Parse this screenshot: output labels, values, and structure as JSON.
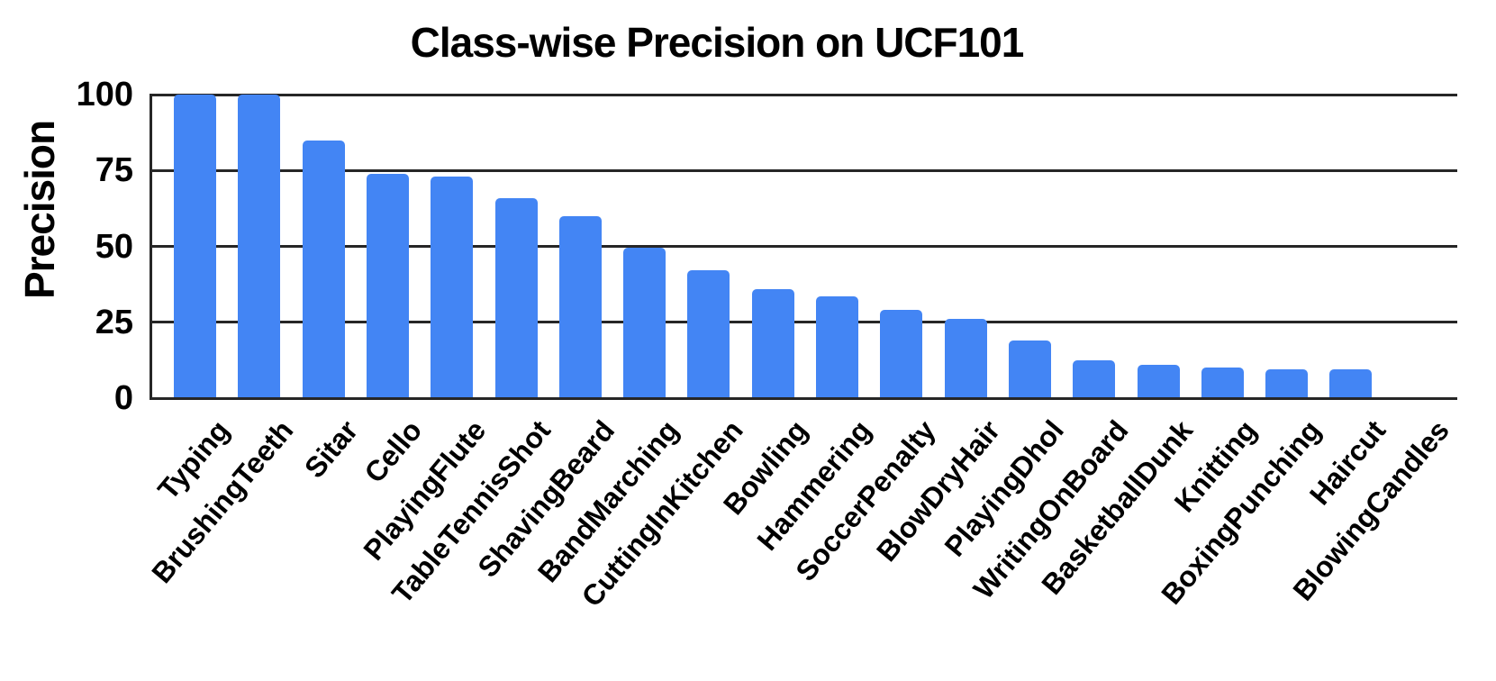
{
  "colors": {
    "bar": "#4385F4",
    "grid": "#262626",
    "text": "#000000",
    "background": "#ffffff"
  },
  "chart_data": {
    "type": "bar",
    "title": "Class-wise Precision on UCF101",
    "xlabel": "",
    "ylabel": "Precision",
    "ylim": [
      0,
      100
    ],
    "yticks": [
      0,
      25,
      50,
      75,
      100
    ],
    "grid": "horizontal-only",
    "legend": "none",
    "bar_color": "#4385F4",
    "x_label_rotation_deg": 50,
    "categories": [
      "Typing",
      "BrushingTeeth",
      "Sitar",
      "Cello",
      "PlayingFlute",
      "TableTennisShot",
      "ShavingBeard",
      "BandMarching",
      "CuttingInKitchen",
      "Bowling",
      "Hammering",
      "SoccerPenalty",
      "BlowDryHair",
      "PlayingDhol",
      "WritingOnBoard",
      "BasketballDunk",
      "Knitting",
      "BoxingPunching",
      "Haircut",
      "BlowingCandles"
    ],
    "values": [
      100,
      100,
      85,
      74,
      73,
      66,
      60,
      49.5,
      42,
      36,
      33.5,
      29,
      26,
      19,
      12.5,
      11,
      10,
      9.5,
      9.5,
      0
    ]
  }
}
